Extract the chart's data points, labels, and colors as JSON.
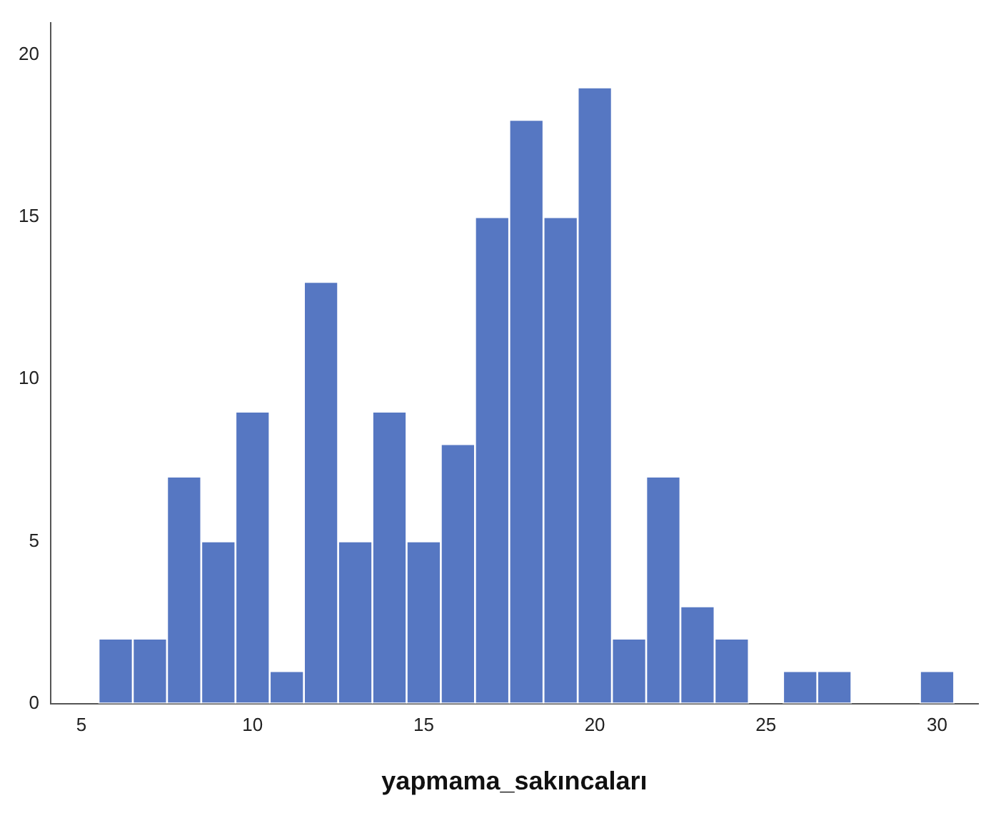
{
  "chart_data": {
    "type": "histogram",
    "xlabel": "yapmama_sakıncaları",
    "bins": [
      5.5,
      6.5,
      7.5,
      8.5,
      9.5,
      10.5,
      11.5,
      12.5,
      13.5,
      14.5,
      15.5,
      16.5,
      17.5,
      18.5,
      19.5,
      20.5,
      21.5,
      22.5,
      23.5,
      24.5,
      25.5,
      26.5,
      27.5,
      28.5,
      29.5,
      30.5
    ],
    "values": [
      2,
      2,
      7,
      5,
      9,
      1,
      13,
      5,
      9,
      5,
      8,
      15,
      18,
      15,
      19,
      2,
      7,
      3,
      2,
      0,
      1,
      1,
      0,
      0,
      1
    ],
    "color": "#5677c2",
    "xlim": [
      4.1,
      31.2
    ],
    "xticks": [
      5,
      10,
      15,
      20,
      25,
      30
    ],
    "ylim": [
      0,
      21
    ],
    "yticks": [
      0,
      5,
      10,
      15,
      20
    ],
    "grid": false,
    "legend": false
  }
}
